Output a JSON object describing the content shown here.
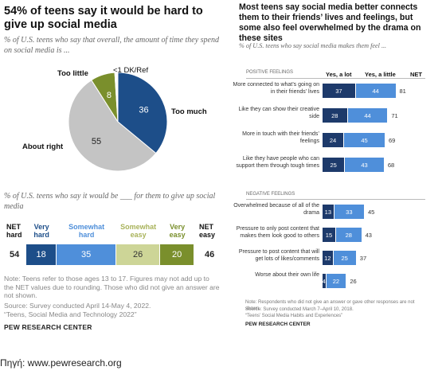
{
  "left": {
    "title": "54% of teens say it would be hard to give up social media",
    "subtitle1": "% of U.S. teens who say that overall, the amount of time they spend on social media is ...",
    "pie": {
      "slices": [
        {
          "name": "Too much",
          "value": 36,
          "color": "#1d4e89"
        },
        {
          "name": "About right",
          "value": 55,
          "color": "#c4c4c4"
        },
        {
          "name": "Too little",
          "value": 8,
          "color": "#7a8f2c"
        },
        {
          "name": "<1 DK/Ref",
          "value": 1,
          "color": "#ffffff"
        }
      ]
    },
    "subtitle2": "% of U.S. teens who say it would be ___ for them to give up social media",
    "hard_net_label": "NET hard",
    "easy_net_label": "NET easy",
    "hard_net_value": "54",
    "easy_net_value": "46",
    "categories": [
      {
        "label": "Very hard",
        "value": 18,
        "color": "#1d4e89",
        "label_color": "#1d4e89"
      },
      {
        "label": "Somewhat hard",
        "value": 35,
        "color": "#4f8fda",
        "label_color": "#4f8fda"
      },
      {
        "label": "Somewhat easy",
        "value": 26,
        "color": "#cdd597",
        "label_color": "#a9b35b"
      },
      {
        "label": "Very easy",
        "value": 20,
        "color": "#7a8f2c",
        "label_color": "#7a8f2c"
      }
    ],
    "note": "Note: Teens refer to those ages 13 to 17. Figures may not add up to the NET values due to rounding. Those who did not give an answer are not shown.",
    "source": "Source: Survey conducted April 14-May 4, 2022.",
    "report": "“Teens, Social Media and Technology 2022”",
    "org": "PEW RESEARCH CENTER"
  },
  "right": {
    "title": "Most teens say social media better connects them to their friends’ lives and feelings, but some also feel overwhelmed by the drama on these sites",
    "subtitle": "% of U.S. teens who say social media makes them feel ...",
    "positive_header": "POSITIVE FEELINGS",
    "negative_header": "NEGATIVE FEELINGS",
    "col_lot": "Yes, a lot",
    "col_little": "Yes, a little",
    "col_net": "NET",
    "positive": [
      {
        "label": "More connected to what’s going on in their friends’ lives",
        "lot": 37,
        "little": 44,
        "net": 81
      },
      {
        "label": "Like they can show their creative side",
        "lot": 28,
        "little": 44,
        "net": 71
      },
      {
        "label": "More in touch with their friends’ feelings",
        "lot": 24,
        "little": 45,
        "net": 69
      },
      {
        "label": "Like they have people who can support them through tough times",
        "lot": 25,
        "little": 43,
        "net": 68
      }
    ],
    "negative": [
      {
        "label": "Overwhelmed because of all of the drama",
        "lot": 13,
        "little": 33,
        "net": 45
      },
      {
        "label": "Pressure to only post content that makes them look good to others",
        "lot": 15,
        "little": 28,
        "net": 43
      },
      {
        "label": "Pressure to post content that will get lots of likes/comments",
        "lot": 12,
        "little": 25,
        "net": 37
      },
      {
        "label": "Worse about their own life",
        "lot": 4,
        "little": 22,
        "net": 26
      }
    ],
    "lot_color": "#1d3a6b",
    "little_color": "#4f8fda",
    "note": "Note: Respondents who did not give an answer or gave other responses are not shown.",
    "source": "Source: Survey conducted March 7–April 10, 2018.",
    "report": "“Teens’ Social Media Habits and Experiences”",
    "org": "PEW RESEARCH CENTER"
  },
  "caption": "Πηγή: www.pewresearch.org",
  "chart_data": [
    {
      "type": "pie",
      "title": "54% of teens say it would be hard to give up social media",
      "subtitle": "% of U.S. teens who say that overall, the amount of time they spend on social media is ...",
      "categories": [
        "Too much",
        "About right",
        "Too little",
        "DK/Ref"
      ],
      "values": [
        36,
        55,
        8,
        1
      ]
    },
    {
      "type": "bar",
      "subtitle": "% of U.S. teens who say it would be ___ for them to give up social media",
      "categories": [
        "Very hard",
        "Somewhat hard",
        "Somewhat easy",
        "Very easy"
      ],
      "values": [
        18,
        35,
        26,
        20
      ],
      "net": {
        "NET hard": 54,
        "NET easy": 46
      }
    },
    {
      "type": "bar",
      "title": "Most teens say social media better connects them to their friends’ lives and feelings, but some also feel overwhelmed by the drama on these sites",
      "categories": [
        "More connected to what’s going on in their friends’ lives",
        "Like they can show their creative side",
        "More in touch with their friends’ feelings",
        "Like they have people who can support them through tough times",
        "Overwhelmed because of all of the drama",
        "Pressure to only post content that makes them look good to others",
        "Pressure to post content that will get lots of likes/comments",
        "Worse about their own life"
      ],
      "series": [
        {
          "name": "Yes, a lot",
          "values": [
            37,
            28,
            24,
            25,
            13,
            15,
            12,
            4
          ]
        },
        {
          "name": "Yes, a little",
          "values": [
            44,
            44,
            45,
            43,
            33,
            28,
            25,
            22
          ]
        },
        {
          "name": "NET",
          "values": [
            81,
            71,
            69,
            68,
            45,
            43,
            37,
            26
          ]
        }
      ]
    }
  ]
}
